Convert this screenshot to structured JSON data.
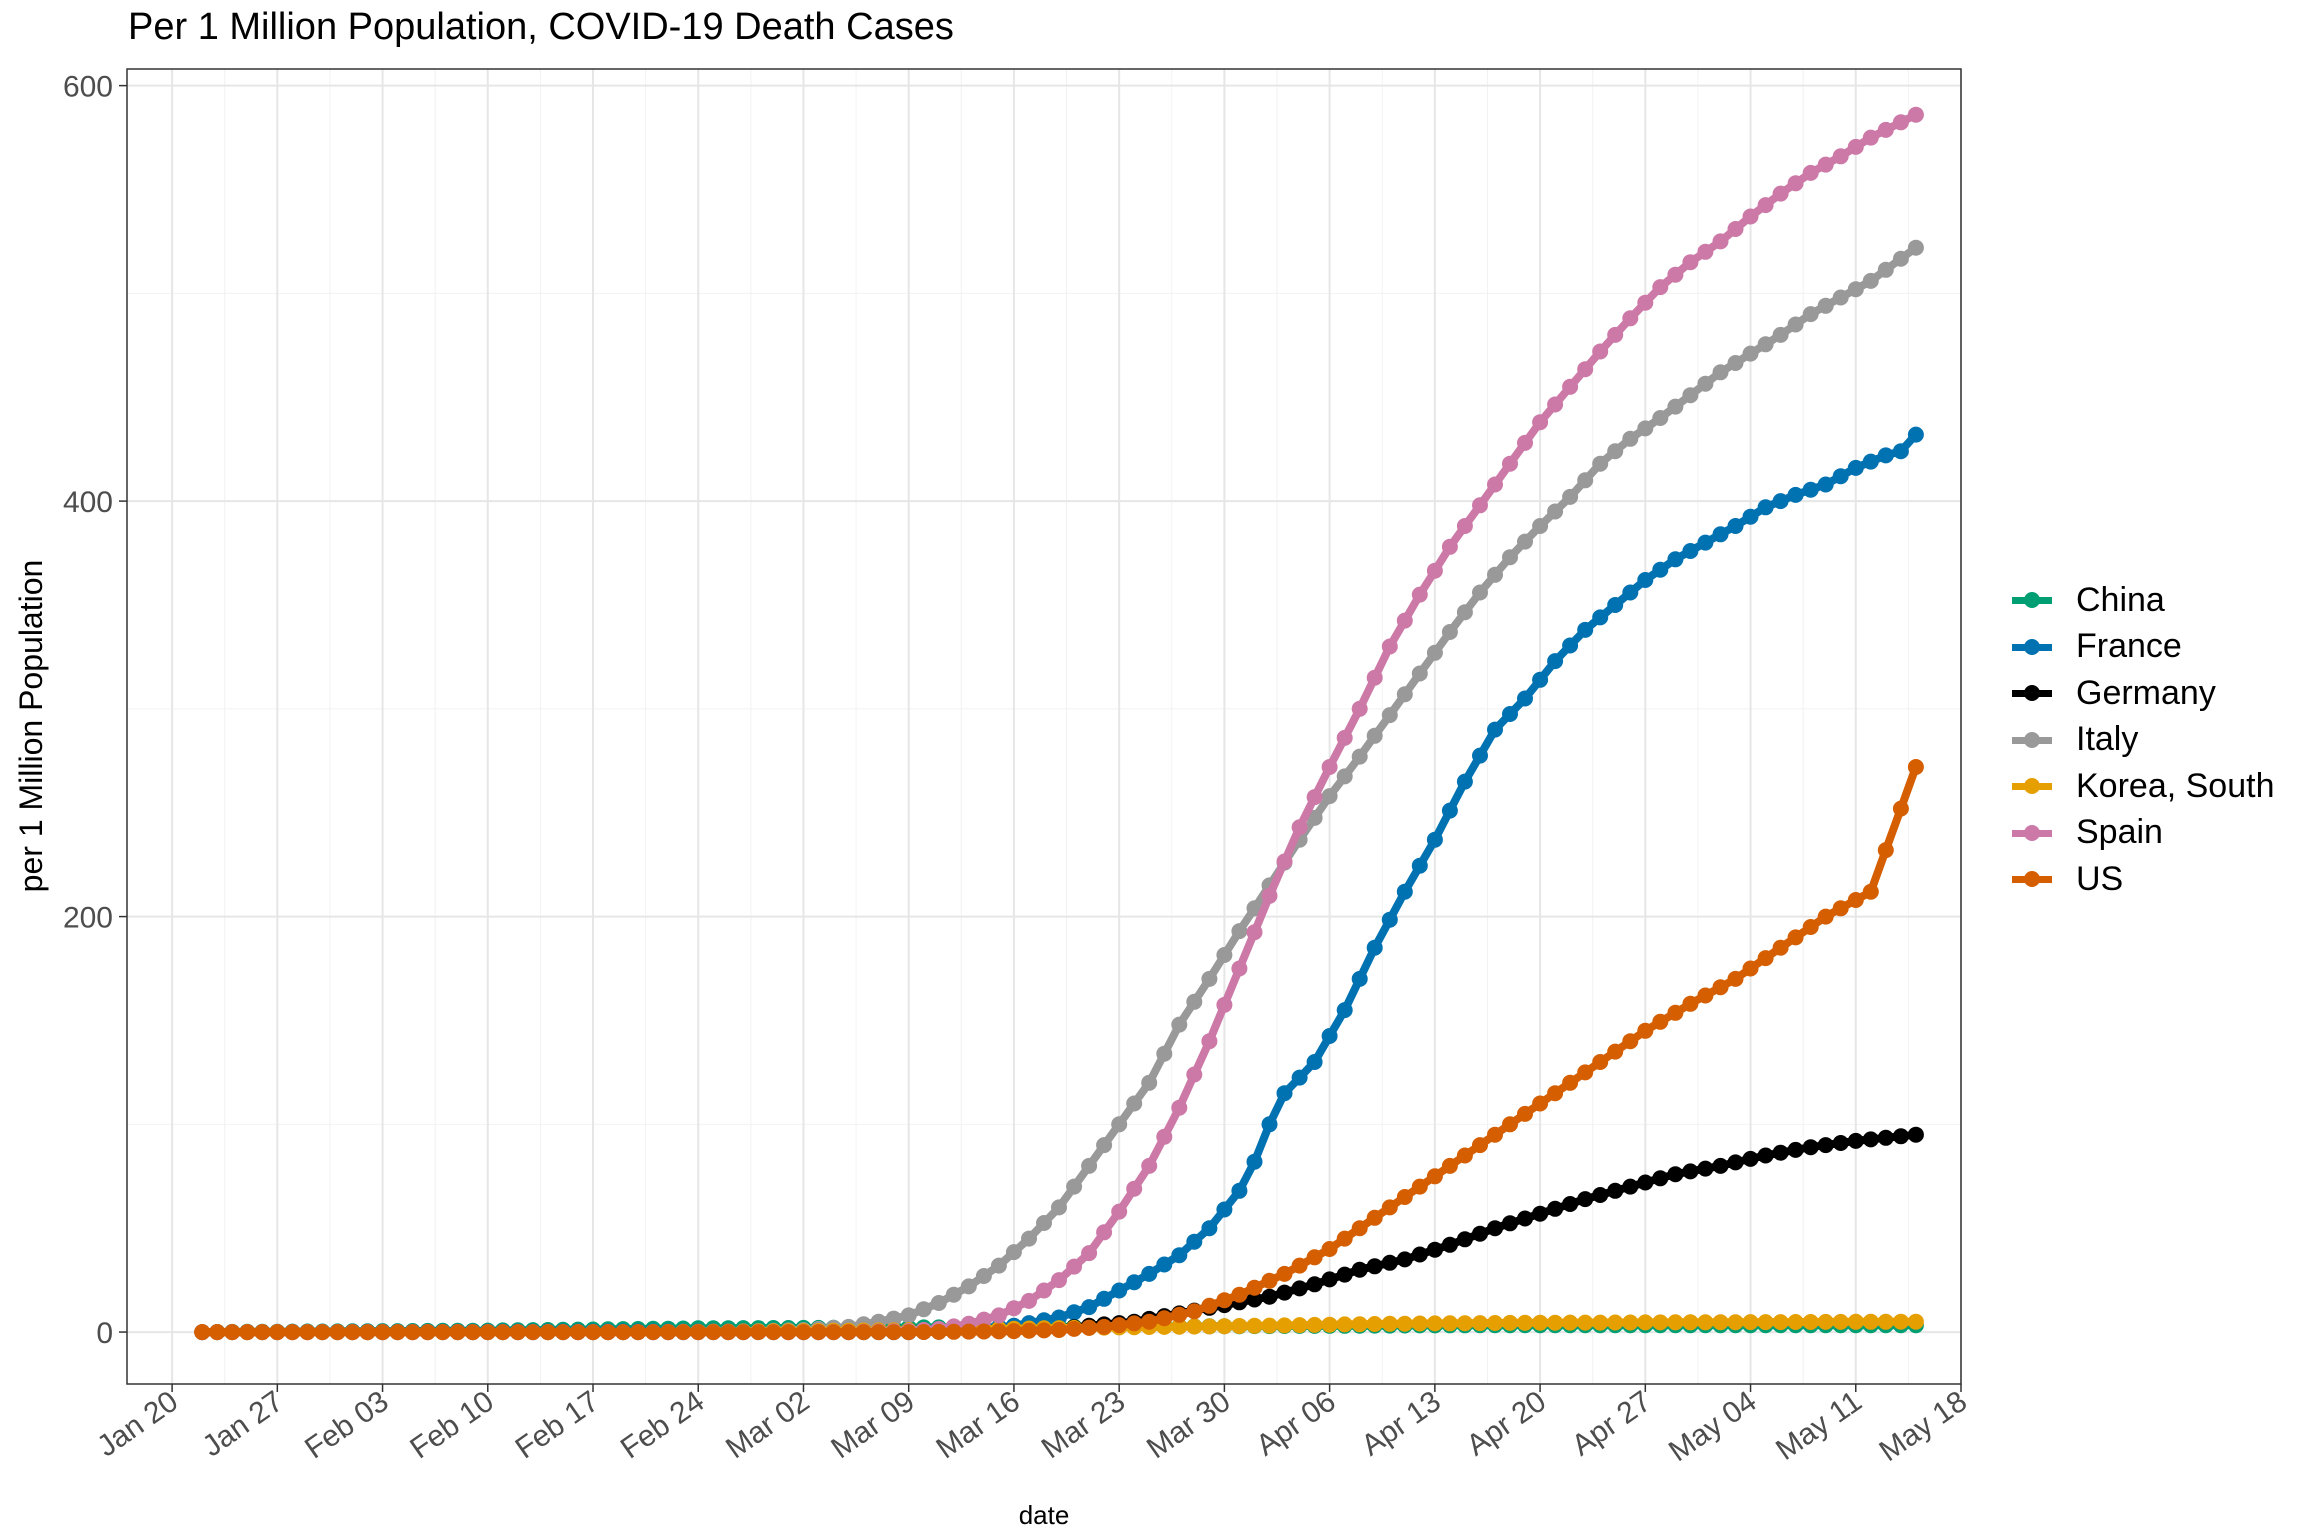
{
  "chart_data": {
    "type": "line",
    "title": "Per 1 Million Population, COVID-19 Death Cases",
    "xlabel": "date",
    "ylabel": "per 1 Million Population",
    "x_start": "2020-01-22",
    "x_end": "2020-05-15",
    "xlim": [
      "2020-01-17",
      "2020-05-18"
    ],
    "ylim": [
      -25,
      608
    ],
    "x_ticks": [
      "Jan 20",
      "Jan 27",
      "Feb 03",
      "Feb 10",
      "Feb 17",
      "Feb 24",
      "Mar 02",
      "Mar 09",
      "Mar 16",
      "Mar 23",
      "Mar 30",
      "Apr 06",
      "Apr 13",
      "Apr 20",
      "Apr 27",
      "May 04",
      "May 11",
      "May 18"
    ],
    "y_ticks": [
      0,
      200,
      400,
      600
    ],
    "grid": true,
    "legend_position": "right",
    "series": [
      {
        "name": "China",
        "color": "#009E73",
        "points": [
          [
            "2020-01-22",
            0
          ],
          [
            "2020-02-10",
            0.7
          ],
          [
            "2020-02-24",
            1.8
          ],
          [
            "2020-03-09",
            2.2
          ],
          [
            "2020-04-16",
            3.3
          ],
          [
            "2020-05-15",
            3.3
          ]
        ]
      },
      {
        "name": "France",
        "color": "#0072B2",
        "points": [
          [
            "2020-01-22",
            0
          ],
          [
            "2020-03-09",
            0.5
          ],
          [
            "2020-03-13",
            1.2
          ],
          [
            "2020-03-16",
            3
          ],
          [
            "2020-03-19",
            7
          ],
          [
            "2020-03-21",
            12
          ],
          [
            "2020-03-23",
            20
          ],
          [
            "2020-03-25",
            28
          ],
          [
            "2020-03-27",
            37
          ],
          [
            "2020-03-29",
            50
          ],
          [
            "2020-03-31",
            68
          ],
          [
            "2020-04-01",
            82
          ],
          [
            "2020-04-02",
            100
          ],
          [
            "2020-04-03",
            115
          ],
          [
            "2020-04-05",
            130
          ],
          [
            "2020-04-07",
            155
          ],
          [
            "2020-04-09",
            185
          ],
          [
            "2020-04-11",
            212
          ],
          [
            "2020-04-13",
            237
          ],
          [
            "2020-04-15",
            265
          ],
          [
            "2020-04-17",
            290
          ],
          [
            "2020-04-19",
            305
          ],
          [
            "2020-04-21",
            323
          ],
          [
            "2020-04-23",
            338
          ],
          [
            "2020-04-25",
            350
          ],
          [
            "2020-04-27",
            362
          ],
          [
            "2020-04-29",
            372
          ],
          [
            "2020-05-01",
            380
          ],
          [
            "2020-05-03",
            388
          ],
          [
            "2020-05-05",
            397
          ],
          [
            "2020-05-07",
            403
          ],
          [
            "2020-05-09",
            408
          ],
          [
            "2020-05-11",
            416
          ],
          [
            "2020-05-13",
            422
          ],
          [
            "2020-05-14",
            424
          ],
          [
            "2020-05-15",
            432
          ]
        ]
      },
      {
        "name": "Germany",
        "color": "#000000",
        "points": [
          [
            "2020-01-22",
            0
          ],
          [
            "2020-03-09",
            0
          ],
          [
            "2020-03-15",
            0.5
          ],
          [
            "2020-03-18",
            1
          ],
          [
            "2020-03-21",
            3
          ],
          [
            "2020-03-24",
            5
          ],
          [
            "2020-03-27",
            9
          ],
          [
            "2020-03-30",
            13
          ],
          [
            "2020-04-02",
            17
          ],
          [
            "2020-04-05",
            23
          ],
          [
            "2020-04-08",
            30
          ],
          [
            "2020-04-11",
            35
          ],
          [
            "2020-04-14",
            42
          ],
          [
            "2020-04-17",
            50
          ],
          [
            "2020-04-20",
            57
          ],
          [
            "2020-04-23",
            64
          ],
          [
            "2020-04-26",
            70
          ],
          [
            "2020-04-29",
            76
          ],
          [
            "2020-05-02",
            80
          ],
          [
            "2020-05-05",
            85
          ],
          [
            "2020-05-08",
            89
          ],
          [
            "2020-05-11",
            92
          ],
          [
            "2020-05-15",
            95
          ]
        ]
      },
      {
        "name": "Italy",
        "color": "#999999",
        "points": [
          [
            "2020-01-22",
            0
          ],
          [
            "2020-02-23",
            0
          ],
          [
            "2020-02-27",
            0.3
          ],
          [
            "2020-03-02",
            1
          ],
          [
            "2020-03-05",
            2.5
          ],
          [
            "2020-03-07",
            5
          ],
          [
            "2020-03-09",
            8
          ],
          [
            "2020-03-11",
            14
          ],
          [
            "2020-03-13",
            22
          ],
          [
            "2020-03-15",
            32
          ],
          [
            "2020-03-17",
            45
          ],
          [
            "2020-03-19",
            60
          ],
          [
            "2020-03-21",
            80
          ],
          [
            "2020-03-23",
            100
          ],
          [
            "2020-03-25",
            120
          ],
          [
            "2020-03-27",
            148
          ],
          [
            "2020-03-29",
            170
          ],
          [
            "2020-03-31",
            193
          ],
          [
            "2020-04-02",
            215
          ],
          [
            "2020-04-04",
            237
          ],
          [
            "2020-04-06",
            258
          ],
          [
            "2020-04-08",
            277
          ],
          [
            "2020-04-10",
            297
          ],
          [
            "2020-04-12",
            317
          ],
          [
            "2020-04-14",
            337
          ],
          [
            "2020-04-16",
            356
          ],
          [
            "2020-04-18",
            373
          ],
          [
            "2020-04-20",
            388
          ],
          [
            "2020-04-22",
            402
          ],
          [
            "2020-04-24",
            418
          ],
          [
            "2020-04-26",
            430
          ],
          [
            "2020-04-28",
            440
          ],
          [
            "2020-04-30",
            451
          ],
          [
            "2020-05-02",
            462
          ],
          [
            "2020-05-04",
            471
          ],
          [
            "2020-05-06",
            480
          ],
          [
            "2020-05-08",
            490
          ],
          [
            "2020-05-10",
            498
          ],
          [
            "2020-05-12",
            506
          ],
          [
            "2020-05-15",
            522
          ]
        ]
      },
      {
        "name": "Korea, South",
        "color": "#E69F00",
        "points": [
          [
            "2020-01-22",
            0
          ],
          [
            "2020-02-20",
            0
          ],
          [
            "2020-03-01",
            0.4
          ],
          [
            "2020-03-10",
            1
          ],
          [
            "2020-03-20",
            2
          ],
          [
            "2020-04-01",
            3
          ],
          [
            "2020-04-10",
            4
          ],
          [
            "2020-04-20",
            4.5
          ],
          [
            "2020-05-15",
            5
          ]
        ]
      },
      {
        "name": "Spain",
        "color": "#CC79A7",
        "points": [
          [
            "2020-01-22",
            0
          ],
          [
            "2020-03-05",
            0
          ],
          [
            "2020-03-09",
            0.5
          ],
          [
            "2020-03-11",
            1.5
          ],
          [
            "2020-03-13",
            4
          ],
          [
            "2020-03-15",
            8
          ],
          [
            "2020-03-17",
            15
          ],
          [
            "2020-03-19",
            25
          ],
          [
            "2020-03-21",
            38
          ],
          [
            "2020-03-23",
            58
          ],
          [
            "2020-03-25",
            80
          ],
          [
            "2020-03-27",
            108
          ],
          [
            "2020-03-29",
            140
          ],
          [
            "2020-03-31",
            175
          ],
          [
            "2020-04-02",
            210
          ],
          [
            "2020-04-04",
            243
          ],
          [
            "2020-04-06",
            272
          ],
          [
            "2020-04-08",
            300
          ],
          [
            "2020-04-10",
            330
          ],
          [
            "2020-04-12",
            355
          ],
          [
            "2020-04-14",
            378
          ],
          [
            "2020-04-16",
            398
          ],
          [
            "2020-04-18",
            418
          ],
          [
            "2020-04-20",
            438
          ],
          [
            "2020-04-22",
            455
          ],
          [
            "2020-04-24",
            472
          ],
          [
            "2020-04-26",
            488
          ],
          [
            "2020-04-28",
            503
          ],
          [
            "2020-04-30",
            515
          ],
          [
            "2020-05-02",
            525
          ],
          [
            "2020-05-04",
            537
          ],
          [
            "2020-05-06",
            548
          ],
          [
            "2020-05-08",
            558
          ],
          [
            "2020-05-10",
            566
          ],
          [
            "2020-05-12",
            575
          ],
          [
            "2020-05-15",
            586
          ]
        ]
      },
      {
        "name": "US",
        "color": "#D55E00",
        "points": [
          [
            "2020-01-22",
            0
          ],
          [
            "2020-03-09",
            0
          ],
          [
            "2020-03-15",
            0.3
          ],
          [
            "2020-03-19",
            1
          ],
          [
            "2020-03-22",
            2.5
          ],
          [
            "2020-03-25",
            5
          ],
          [
            "2020-03-28",
            10
          ],
          [
            "2020-03-31",
            18
          ],
          [
            "2020-04-03",
            28
          ],
          [
            "2020-04-06",
            40
          ],
          [
            "2020-04-09",
            55
          ],
          [
            "2020-04-12",
            70
          ],
          [
            "2020-04-15",
            85
          ],
          [
            "2020-04-18",
            100
          ],
          [
            "2020-04-21",
            115
          ],
          [
            "2020-04-24",
            130
          ],
          [
            "2020-04-27",
            145
          ],
          [
            "2020-04-30",
            158
          ],
          [
            "2020-05-03",
            170
          ],
          [
            "2020-05-06",
            185
          ],
          [
            "2020-05-09",
            200
          ],
          [
            "2020-05-12",
            212
          ],
          [
            "2020-05-15",
            272
          ]
        ]
      }
    ]
  },
  "ui": {
    "title": "Per 1 Million Population, COVID-19 Death Cases",
    "xlabel": "date",
    "ylabel": "per 1 Million Population"
  }
}
